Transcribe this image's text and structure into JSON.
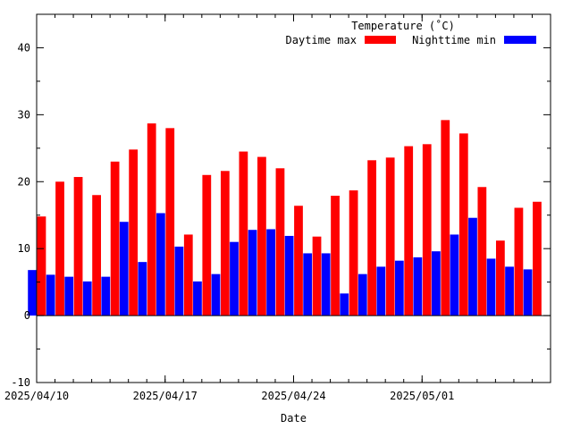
{
  "chart_data": {
    "type": "bar",
    "title": "",
    "xlabel": "Date",
    "ylabel": "",
    "ylim": [
      -10,
      45
    ],
    "yticks": [
      -10,
      0,
      10,
      20,
      30,
      40
    ],
    "xlim": [
      "2025-04-10",
      "2025-05-08"
    ],
    "xticks": [
      "2025/04/10",
      "2025/04/17",
      "2025/04/24",
      "2025/05/01"
    ],
    "grid": false,
    "legend": {
      "title": "Temperature (˚C)",
      "placement": "top-right"
    },
    "categories": [
      "2025-04-10",
      "2025-04-11",
      "2025-04-12",
      "2025-04-13",
      "2025-04-14",
      "2025-04-15",
      "2025-04-16",
      "2025-04-17",
      "2025-04-18",
      "2025-04-19",
      "2025-04-20",
      "2025-04-21",
      "2025-04-22",
      "2025-04-23",
      "2025-04-24",
      "2025-04-25",
      "2025-04-26",
      "2025-04-27",
      "2025-04-28",
      "2025-04-29",
      "2025-04-30",
      "2025-05-01",
      "2025-05-02",
      "2025-05-03",
      "2025-05-04",
      "2025-05-05",
      "2025-05-06",
      "2025-05-07"
    ],
    "series": [
      {
        "name": "Daytime max",
        "color": "#ff0000",
        "values": [
          14.8,
          20.0,
          20.7,
          18.0,
          23.0,
          24.8,
          28.7,
          28.0,
          12.1,
          21.0,
          21.6,
          24.5,
          23.7,
          22.0,
          16.4,
          11.8,
          17.9,
          18.7,
          23.2,
          23.6,
          25.3,
          25.6,
          29.2,
          27.2,
          19.2,
          11.2,
          16.1,
          17.0
        ]
      },
      {
        "name": "Nighttime min",
        "color": "#0000ff",
        "values": [
          6.8,
          6.1,
          5.8,
          5.1,
          5.8,
          14.0,
          8.0,
          15.3,
          10.3,
          5.1,
          6.2,
          11.0,
          12.8,
          12.9,
          11.9,
          9.3,
          9.3,
          3.3,
          6.2,
          7.3,
          8.2,
          8.7,
          9.6,
          12.1,
          14.6,
          8.5,
          7.3,
          6.9
        ]
      }
    ]
  }
}
